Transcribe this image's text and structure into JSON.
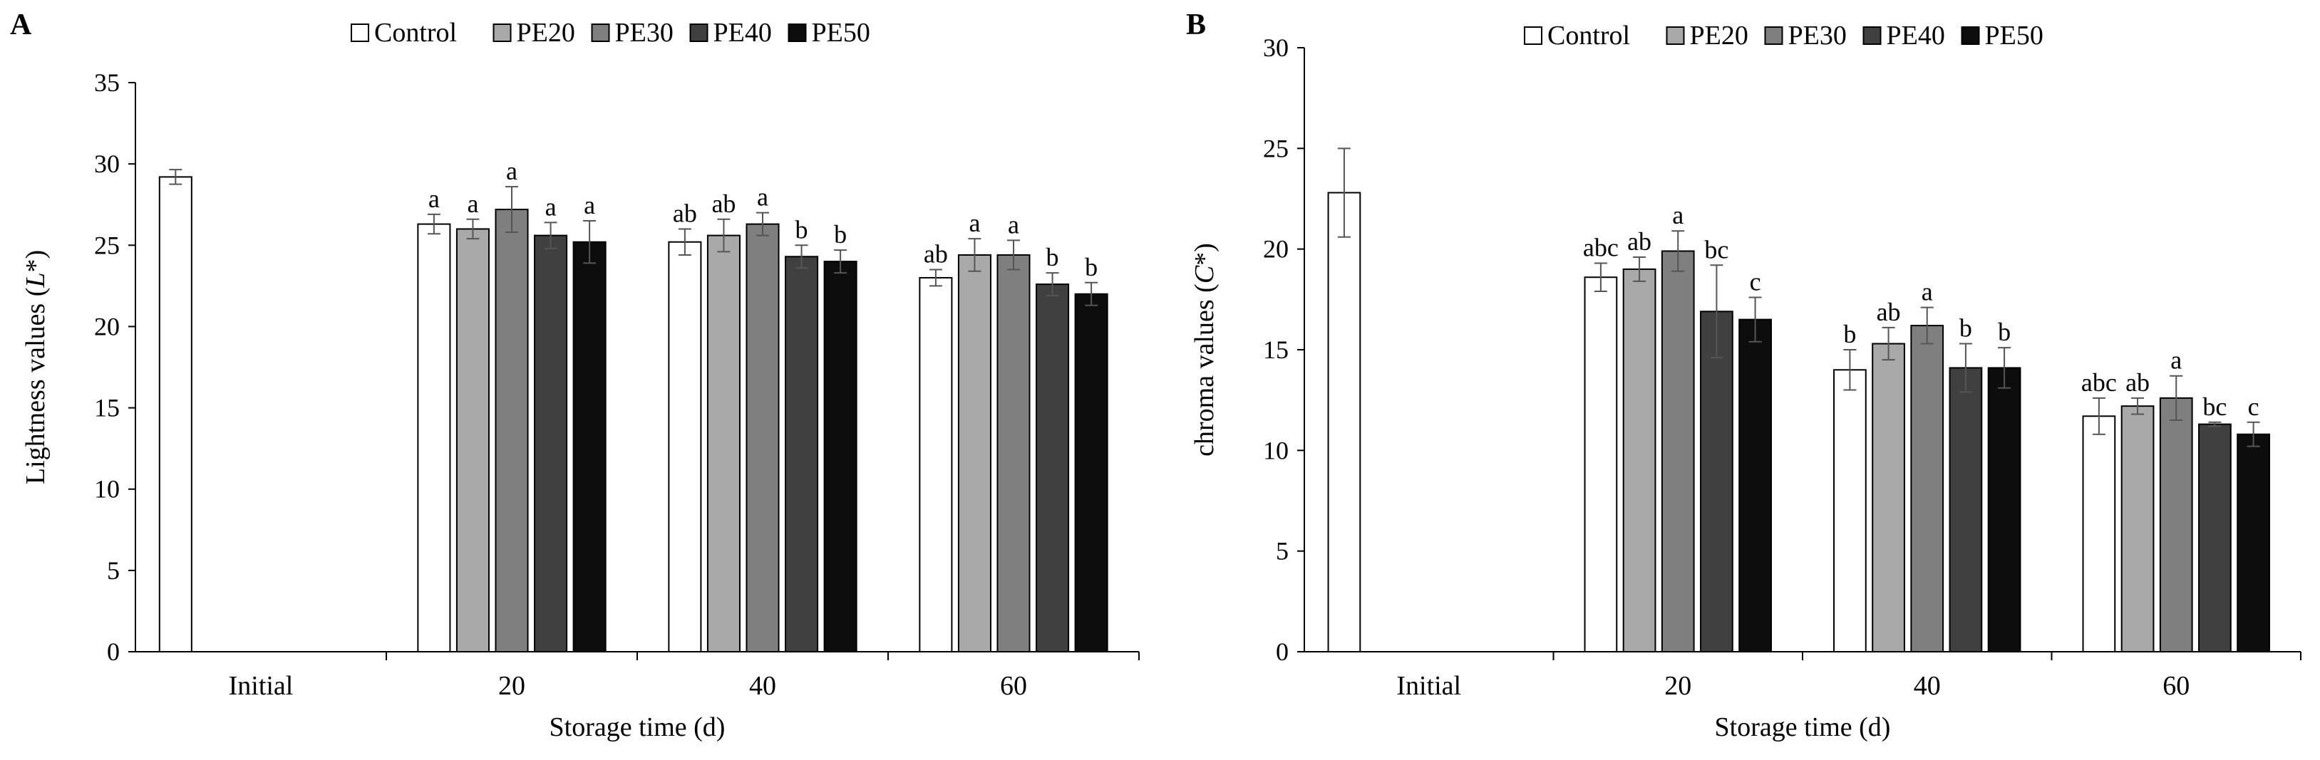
{
  "chart_data": [
    {
      "panel": "A",
      "type": "bar",
      "xlabel": "Storage time (d)",
      "ylabel_prefix": "Lightness  values (",
      "ylabel_var": "L",
      "ylabel_suffix": "*)",
      "ylim": [
        0,
        35
      ],
      "yticks": [
        0,
        5,
        10,
        15,
        20,
        25,
        30,
        35
      ],
      "categories": [
        "Initial",
        "20",
        "40",
        "60"
      ],
      "legend": [
        "Control",
        "PE20",
        "PE30",
        "PE40",
        "PE50"
      ],
      "series": [
        {
          "name": "Control",
          "color": "#ffffff",
          "values": [
            29.2,
            26.3,
            25.2,
            23.0
          ],
          "errors": [
            0.45,
            0.6,
            0.8,
            0.5
          ],
          "labels": [
            "",
            "a",
            "ab",
            "ab"
          ]
        },
        {
          "name": "PE20",
          "color": "#a9a9a9",
          "values": [
            null,
            26.0,
            25.6,
            24.4
          ],
          "errors": [
            null,
            0.6,
            1.0,
            1.0
          ],
          "labels": [
            "",
            "a",
            "ab",
            "a"
          ]
        },
        {
          "name": "PE30",
          "color": "#7f7f7f",
          "values": [
            null,
            27.2,
            26.3,
            24.4
          ],
          "errors": [
            null,
            1.4,
            0.7,
            0.9
          ],
          "labels": [
            "",
            "a",
            "a",
            "a"
          ]
        },
        {
          "name": "PE40",
          "color": "#404040",
          "values": [
            null,
            25.6,
            24.3,
            22.6
          ],
          "errors": [
            null,
            0.8,
            0.7,
            0.7
          ],
          "labels": [
            "",
            "a",
            "b",
            "b"
          ]
        },
        {
          "name": "PE50",
          "color": "#0d0d0d",
          "values": [
            null,
            25.2,
            24.0,
            22.0
          ],
          "errors": [
            null,
            1.3,
            0.7,
            0.7
          ],
          "labels": [
            "",
            "a",
            "b",
            "b"
          ]
        }
      ]
    },
    {
      "panel": "B",
      "type": "bar",
      "xlabel": "Storage time (d)",
      "ylabel_prefix": "chroma values (",
      "ylabel_var": "C",
      "ylabel_suffix": "*)",
      "ylim": [
        0,
        30
      ],
      "yticks": [
        0,
        5,
        10,
        15,
        20,
        25,
        30
      ],
      "categories": [
        "Initial",
        "20",
        "40",
        "60"
      ],
      "legend": [
        "Control",
        "PE20",
        "PE30",
        "PE40",
        "PE50"
      ],
      "series": [
        {
          "name": "Control",
          "color": "#ffffff",
          "values": [
            22.8,
            18.6,
            14.0,
            11.7
          ],
          "errors": [
            2.2,
            0.7,
            1.0,
            0.9
          ],
          "labels": [
            "",
            "abc",
            "b",
            "abc"
          ]
        },
        {
          "name": "PE20",
          "color": "#a9a9a9",
          "values": [
            null,
            19.0,
            15.3,
            12.2
          ],
          "errors": [
            null,
            0.6,
            0.8,
            0.4
          ],
          "labels": [
            "",
            "ab",
            "ab",
            "ab"
          ]
        },
        {
          "name": "PE30",
          "color": "#7f7f7f",
          "values": [
            null,
            19.9,
            16.2,
            12.6
          ],
          "errors": [
            null,
            1.0,
            0.9,
            1.1
          ],
          "labels": [
            "",
            "a",
            "a",
            "a"
          ]
        },
        {
          "name": "PE40",
          "color": "#404040",
          "values": [
            null,
            16.9,
            14.1,
            11.3
          ],
          "errors": [
            null,
            2.3,
            1.2,
            0.1
          ],
          "labels": [
            "",
            "bc",
            "b",
            "bc"
          ]
        },
        {
          "name": "PE50",
          "color": "#0d0d0d",
          "values": [
            null,
            16.5,
            14.1,
            10.8
          ],
          "errors": [
            null,
            1.1,
            1.0,
            0.6
          ],
          "labels": [
            "",
            "c",
            "b",
            "c"
          ]
        }
      ]
    }
  ]
}
